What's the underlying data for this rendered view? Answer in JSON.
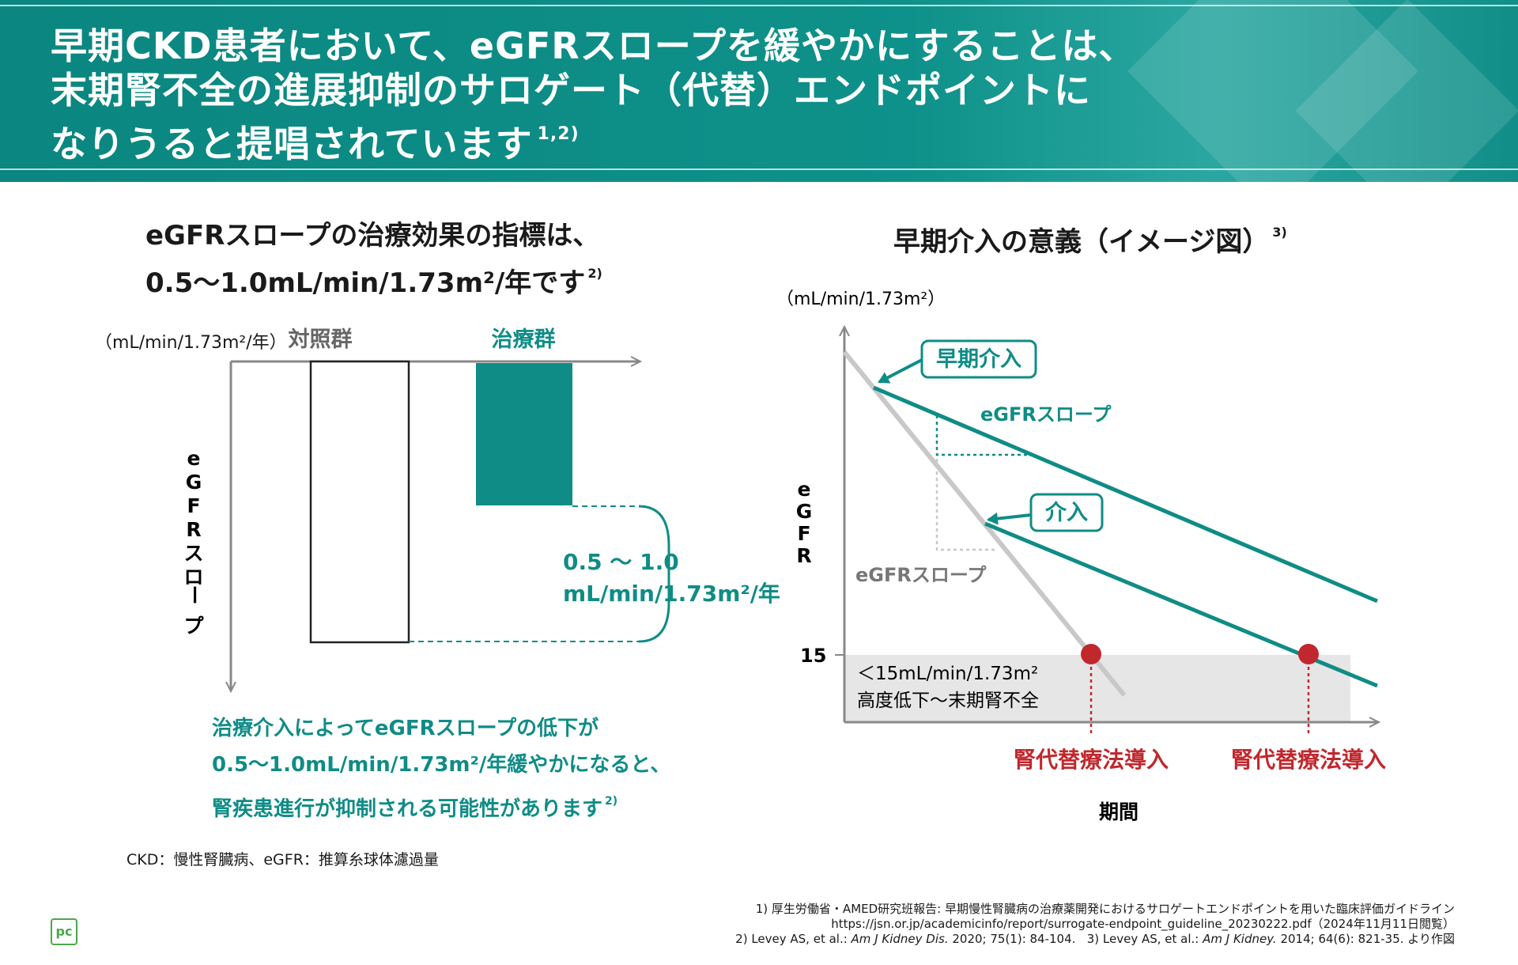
{
  "header": {
    "title_line1": "早期CKD患者において、eGFRスロープを緩やかにすることは、",
    "title_line2": "末期腎不全の進展抑制のサロゲート（代替）エンドポイントに",
    "title_line3": "なりうると提唱されています",
    "title_ref": "1,2)"
  },
  "left_panel": {
    "heading_line1": "eGFRスロープの治療効果の指標は、",
    "heading_line2": "0.5〜1.0mL/min/1.73m²/年です",
    "heading_ref": "2)",
    "unit_label": "（mL/min/1.73m²/年）",
    "control_label": "対照群",
    "treatment_label": "治療群",
    "y_axis_label": [
      "e",
      "G",
      "F",
      "R",
      "ス",
      "ロ",
      "ー",
      "プ"
    ],
    "difference_label_line1": "0.5 〜 1.0",
    "difference_label_line2": "mL/min/1.73m²/年",
    "note_line1": "治療介入によってeGFRスロープの低下が",
    "note_line2": "0.5〜1.0mL/min/1.73m²/年緩やかになると、",
    "note_line3": "腎疾患進行が抑制される可能性があります",
    "note_ref": "2)",
    "colors": {
      "teal": "#0f8c86",
      "control_bar": "#ffffff"
    }
  },
  "right_panel": {
    "heading": "早期介入の意義（イメージ図）",
    "heading_ref": "3)",
    "y_unit": "（mL/min/1.73m²）",
    "y_axis_label": [
      "e",
      "G",
      "F",
      "R"
    ],
    "x_axis_label": "期間",
    "tick_15": "15",
    "early_intervention_label": "早期介入",
    "intervention_label": "介入",
    "slope_label_early": "eGFRスロープ",
    "slope_label_control": "eGFRスロープ",
    "esrd_line1": "＜15mL/min/1.73m²",
    "esrd_line2": "高度低下〜末期腎不全",
    "rrt_label_1": "腎代替療法導入",
    "rrt_label_2": "腎代替療法導入",
    "colors": {
      "teal": "#0f8c86",
      "gray_line": "#c8c8c8",
      "red": "#c0282d",
      "esrd_band": "#e6e6e6"
    }
  },
  "footer": {
    "abbreviations": "CKD：慢性腎臓病、eGFR：推算糸球体濾過量",
    "ref1_line1": "1) 厚生労働省・AMED研究班報告: 早期慢性腎臓病の治療薬開発におけるサロゲートエンドポイントを用いた臨床評価ガイドライン",
    "ref1_line2": "https://jsn.or.jp/academicinfo/report/surrogate-endpoint_guideline_20230222.pdf（2024年11月11日閲覧）",
    "ref2_prefix": "2) Levey AS, et al.: ",
    "ref2_journal": "Am J Kidney Dis.",
    "ref2_suffix": " 2020; 75(1): 84-104.",
    "ref3_prefix": "3) Levey AS, et al.: ",
    "ref3_journal": "Am J Kidney.",
    "ref3_suffix": " 2014; 64(6): 821-35. より作図",
    "logo_text": "pc"
  }
}
